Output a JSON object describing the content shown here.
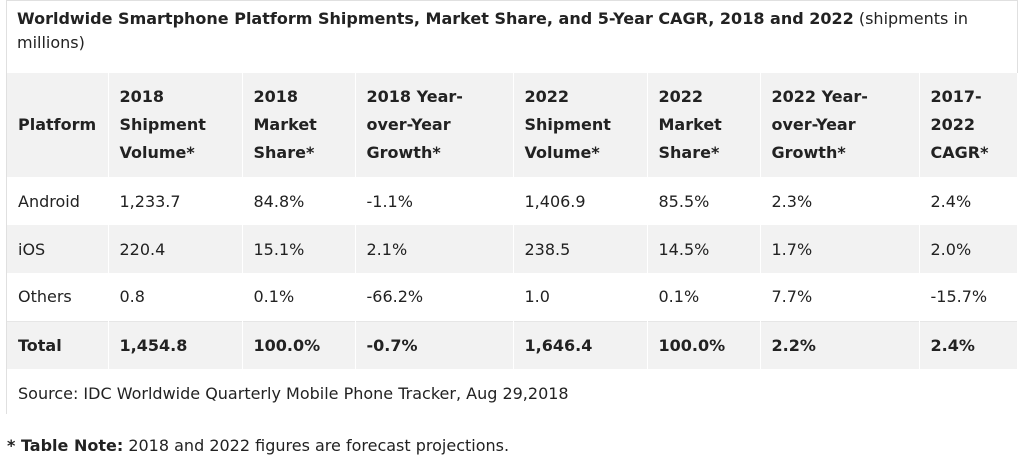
{
  "caption": {
    "title": "Worldwide Smartphone Platform Shipments, Market Share, and 5-Year CAGR, 2018 and 2022",
    "suffix": " (shipments in millions)"
  },
  "chart_data": {
    "type": "table",
    "columns": [
      "Platform",
      "2018 Shipment Volume*",
      "2018 Market Share*",
      "2018 Year-over-Year Growth*",
      "2022 Shipment Volume*",
      "2022 Market Share*",
      "2022 Year-over-Year Growth*",
      "2017-2022 CAGR*"
    ],
    "column_header_lines": [
      [
        "Platform"
      ],
      [
        "2018",
        "Shipment",
        "Volume*"
      ],
      [
        "2018",
        "Market",
        "Share*"
      ],
      [
        "2018 Year-",
        "over-Year",
        "Growth*"
      ],
      [
        "2022",
        "Shipment",
        "Volume*"
      ],
      [
        "2022",
        "Market",
        "Share*"
      ],
      [
        "2022 Year-",
        "over-Year",
        "Growth*"
      ],
      [
        "2017-",
        "2022",
        "CAGR*"
      ]
    ],
    "rows": [
      [
        "Android",
        "1,233.7",
        "84.8%",
        "-1.1%",
        "1,406.9",
        "85.5%",
        "2.3%",
        "2.4%"
      ],
      [
        "iOS",
        "220.4",
        "15.1%",
        "2.1%",
        "238.5",
        "14.5%",
        "1.7%",
        "2.0%"
      ],
      [
        "Others",
        "0.8",
        "0.1%",
        "-66.2%",
        "1.0",
        "0.1%",
        "7.7%",
        "-15.7%"
      ]
    ],
    "total": [
      "Total",
      "1,454.8",
      "100.0%",
      "-0.7%",
      "1,646.4",
      "100.0%",
      "2.2%",
      "2.4%"
    ],
    "source": "Source: IDC Worldwide Quarterly Mobile Phone Tracker, Aug 29,2018"
  },
  "note": {
    "lead": "* Table Note:",
    "text": " 2018 and 2022 figures are forecast projections."
  },
  "colors": {
    "header_bg": "#f2f2f2",
    "stripe_bg": "#f2f2f2",
    "text": "#222222"
  }
}
